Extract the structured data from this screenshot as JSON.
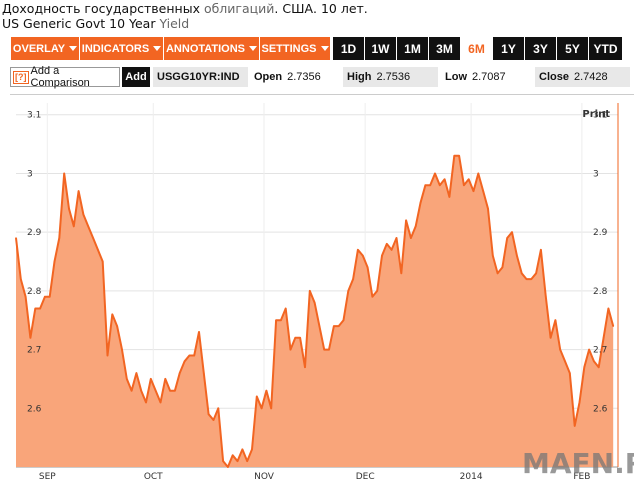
{
  "header": {
    "title_ru_main": "Доходность государственных",
    "title_ru_grey": "облигаций",
    "title_ru_tail": ". США. 10 лет.",
    "subtitle_main": "US Generic Govt 10 Year",
    "subtitle_grey": "Yield"
  },
  "toolbar": {
    "overlay": "OVERLAY",
    "indicators": "INDICATORS",
    "annotations": "ANNOTATIONS",
    "settings": "SETTINGS",
    "ranges": [
      "1D",
      "1W",
      "1M",
      "3M",
      "6M",
      "1Y",
      "3Y",
      "5Y",
      "YTD"
    ],
    "active_range": "6M",
    "accent": "#f26522"
  },
  "infobar": {
    "compare_icon": "[?]",
    "compare_label": "Add a Comparison",
    "add_label": "Add",
    "ticker": "USGG10YR:IND",
    "open_label": "Open",
    "open_value": "2.7356",
    "high_label": "High",
    "high_value": "2.7536",
    "low_label": "Low",
    "low_value": "2.7087",
    "close_label": "Close",
    "close_value": "2.7428"
  },
  "print_label": "Print",
  "watermark": "MAFN.RU",
  "chart_data": {
    "type": "area",
    "color": "#f26522",
    "fill": "#f9a57a",
    "ylim": [
      2.5,
      3.12
    ],
    "yticks": [
      2.6,
      2.7,
      2.8,
      2.9,
      3.0,
      3.1
    ],
    "ytick_labels": [
      "2.6",
      "2.7",
      "2.8",
      "2.9",
      "3",
      "3.1"
    ],
    "xlim": [
      0,
      125
    ],
    "xticks": [
      {
        "x": 6.5,
        "label": "SEP"
      },
      {
        "x": 28.5,
        "label": "OCT"
      },
      {
        "x": 51.5,
        "label": "NOV"
      },
      {
        "x": 72.5,
        "label": "DEC"
      },
      {
        "x": 94.5,
        "label": "2014"
      },
      {
        "x": 117.5,
        "label": "FEB"
      }
    ],
    "x": [
      0,
      1,
      2,
      3,
      4,
      5,
      6,
      7,
      8,
      9,
      10,
      11,
      12,
      13,
      14,
      15,
      16,
      17,
      18,
      19,
      20,
      21,
      22,
      23,
      24,
      25,
      26,
      27,
      28,
      29,
      30,
      31,
      32,
      33,
      34,
      35,
      36,
      37,
      38,
      39,
      40,
      41,
      42,
      43,
      44,
      45,
      46,
      47,
      48,
      49,
      50,
      51,
      52,
      53,
      54,
      55,
      56,
      57,
      58,
      59,
      60,
      61,
      62,
      63,
      64,
      65,
      66,
      67,
      68,
      69,
      70,
      71,
      72,
      73,
      74,
      75,
      76,
      77,
      78,
      79,
      80,
      81,
      82,
      83,
      84,
      85,
      86,
      87,
      88,
      89,
      90,
      91,
      92,
      93,
      94,
      95,
      96,
      97,
      98,
      99,
      100,
      101,
      102,
      103,
      104,
      105,
      106,
      107,
      108,
      109,
      110,
      111,
      112,
      113,
      114,
      115,
      116,
      117,
      118,
      119,
      120,
      121,
      122,
      123,
      124
    ],
    "values": [
      2.89,
      2.82,
      2.79,
      2.72,
      2.77,
      2.77,
      2.79,
      2.79,
      2.85,
      2.89,
      3.0,
      2.94,
      2.91,
      2.97,
      2.93,
      2.91,
      2.89,
      2.87,
      2.85,
      2.69,
      2.76,
      2.74,
      2.7,
      2.65,
      2.63,
      2.66,
      2.63,
      2.61,
      2.65,
      2.63,
      2.61,
      2.65,
      2.63,
      2.63,
      2.66,
      2.68,
      2.69,
      2.69,
      2.73,
      2.66,
      2.59,
      2.58,
      2.6,
      2.51,
      2.5,
      2.52,
      2.51,
      2.53,
      2.51,
      2.53,
      2.62,
      2.6,
      2.63,
      2.6,
      2.75,
      2.75,
      2.77,
      2.7,
      2.72,
      2.72,
      2.67,
      2.8,
      2.78,
      2.74,
      2.7,
      2.7,
      2.74,
      2.74,
      2.75,
      2.8,
      2.82,
      2.87,
      2.86,
      2.84,
      2.79,
      2.8,
      2.86,
      2.88,
      2.87,
      2.89,
      2.83,
      2.92,
      2.89,
      2.91,
      2.95,
      2.98,
      2.98,
      3.0,
      2.98,
      2.99,
      2.96,
      3.03,
      3.03,
      2.98,
      2.99,
      2.97,
      3.0,
      2.97,
      2.94,
      2.86,
      2.83,
      2.84,
      2.89,
      2.9,
      2.86,
      2.83,
      2.82,
      2.82,
      2.83,
      2.87,
      2.79,
      2.72,
      2.75,
      2.7,
      2.68,
      2.66,
      2.57,
      2.61,
      2.67,
      2.7,
      2.68,
      2.67,
      2.72,
      2.77,
      2.74
    ]
  }
}
